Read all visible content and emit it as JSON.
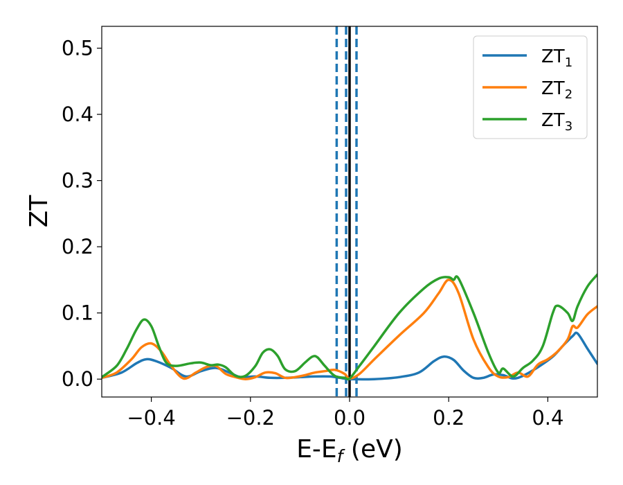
{
  "chart_data": {
    "type": "line",
    "xlabel": "E-E",
    "xlabel_sub": "f",
    "xlabel_unit": " (eV)",
    "ylabel": "ZT",
    "xlim": [
      -0.5,
      0.5
    ],
    "ylim": [
      -0.027,
      0.533
    ],
    "xticks": [
      -0.4,
      -0.2,
      0.0,
      0.2,
      0.4
    ],
    "xtick_labels": [
      "−0.4",
      "−0.2",
      "0.0",
      "0.2",
      "0.4"
    ],
    "yticks": [
      0.0,
      0.1,
      0.2,
      0.3,
      0.4,
      0.5
    ],
    "ytick_labels": [
      "0.0",
      "0.1",
      "0.2",
      "0.3",
      "0.4",
      "0.5"
    ],
    "legend_position": "top-right",
    "grid": false,
    "vlines": [
      {
        "x": 0.0,
        "style": "solid",
        "color": "#000000"
      },
      {
        "x": -0.026,
        "style": "dashed",
        "color": "#1f77b4"
      },
      {
        "x": -0.007,
        "style": "dashed",
        "color": "#1f77b4"
      },
      {
        "x": 0.014,
        "style": "dashed",
        "color": "#1f77b4"
      }
    ],
    "series": [
      {
        "name": "ZT",
        "subscript": "1",
        "color": "#1f77b4",
        "x": [
          -0.5,
          -0.46,
          -0.43,
          -0.41,
          -0.39,
          -0.36,
          -0.33,
          -0.3,
          -0.27,
          -0.24,
          -0.22,
          -0.19,
          -0.16,
          -0.13,
          -0.1,
          -0.07,
          -0.04,
          -0.02,
          0.0,
          0.05,
          0.1,
          0.14,
          0.17,
          0.19,
          0.21,
          0.23,
          0.25,
          0.27,
          0.29,
          0.31,
          0.33,
          0.35,
          0.38,
          0.41,
          0.43,
          0.45,
          0.46,
          0.48,
          0.5
        ],
        "y": [
          0.002,
          0.01,
          0.024,
          0.03,
          0.027,
          0.017,
          0.004,
          0.012,
          0.017,
          0.009,
          0.003,
          0.004,
          0.002,
          0.002,
          0.003,
          0.004,
          0.004,
          0.002,
          0.0,
          0.0,
          0.003,
          0.01,
          0.027,
          0.034,
          0.029,
          0.013,
          0.002,
          0.002,
          0.007,
          0.006,
          0.001,
          0.005,
          0.018,
          0.034,
          0.05,
          0.065,
          0.069,
          0.046,
          0.023
        ]
      },
      {
        "name": "ZT",
        "subscript": "2",
        "color": "#ff7f0e",
        "x": [
          -0.5,
          -0.47,
          -0.44,
          -0.42,
          -0.4,
          -0.38,
          -0.36,
          -0.335,
          -0.31,
          -0.29,
          -0.27,
          -0.25,
          -0.23,
          -0.21,
          -0.19,
          -0.17,
          -0.15,
          -0.13,
          -0.11,
          -0.09,
          -0.07,
          -0.05,
          -0.03,
          -0.01,
          0.0,
          0.02,
          0.05,
          0.1,
          0.15,
          0.18,
          0.2,
          0.22,
          0.25,
          0.28,
          0.3,
          0.32,
          0.34,
          0.36,
          0.38,
          0.4,
          0.42,
          0.44,
          0.45,
          0.46,
          0.48,
          0.5
        ],
        "y": [
          0.002,
          0.01,
          0.03,
          0.048,
          0.054,
          0.042,
          0.02,
          0.001,
          0.01,
          0.018,
          0.02,
          0.008,
          0.003,
          0.0,
          0.003,
          0.01,
          0.009,
          0.002,
          0.003,
          0.006,
          0.01,
          0.012,
          0.014,
          0.008,
          0.001,
          0.008,
          0.03,
          0.066,
          0.1,
          0.13,
          0.15,
          0.13,
          0.06,
          0.018,
          0.004,
          0.003,
          0.01,
          0.004,
          0.022,
          0.03,
          0.042,
          0.06,
          0.08,
          0.078,
          0.098,
          0.11
        ]
      },
      {
        "name": "ZT",
        "subscript": "3",
        "color": "#2ca02c",
        "x": [
          -0.5,
          -0.47,
          -0.45,
          -0.43,
          -0.415,
          -0.4,
          -0.385,
          -0.37,
          -0.35,
          -0.32,
          -0.3,
          -0.28,
          -0.265,
          -0.25,
          -0.23,
          -0.21,
          -0.19,
          -0.175,
          -0.16,
          -0.145,
          -0.13,
          -0.11,
          -0.09,
          -0.075,
          -0.065,
          -0.05,
          -0.03,
          -0.01,
          0.0,
          0.02,
          0.05,
          0.1,
          0.15,
          0.18,
          0.2,
          0.21,
          0.22,
          0.25,
          0.28,
          0.3,
          0.31,
          0.33,
          0.35,
          0.37,
          0.39,
          0.41,
          0.42,
          0.44,
          0.45,
          0.46,
          0.48,
          0.5
        ],
        "y": [
          0.003,
          0.02,
          0.045,
          0.075,
          0.09,
          0.08,
          0.05,
          0.025,
          0.02,
          0.024,
          0.025,
          0.021,
          0.022,
          0.018,
          0.005,
          0.005,
          0.02,
          0.04,
          0.045,
          0.035,
          0.015,
          0.012,
          0.025,
          0.034,
          0.033,
          0.02,
          0.005,
          0.002,
          0.001,
          0.02,
          0.05,
          0.1,
          0.137,
          0.152,
          0.154,
          0.15,
          0.152,
          0.1,
          0.04,
          0.01,
          0.016,
          0.004,
          0.017,
          0.028,
          0.05,
          0.1,
          0.111,
          0.1,
          0.088,
          0.11,
          0.14,
          0.158
        ]
      }
    ]
  }
}
